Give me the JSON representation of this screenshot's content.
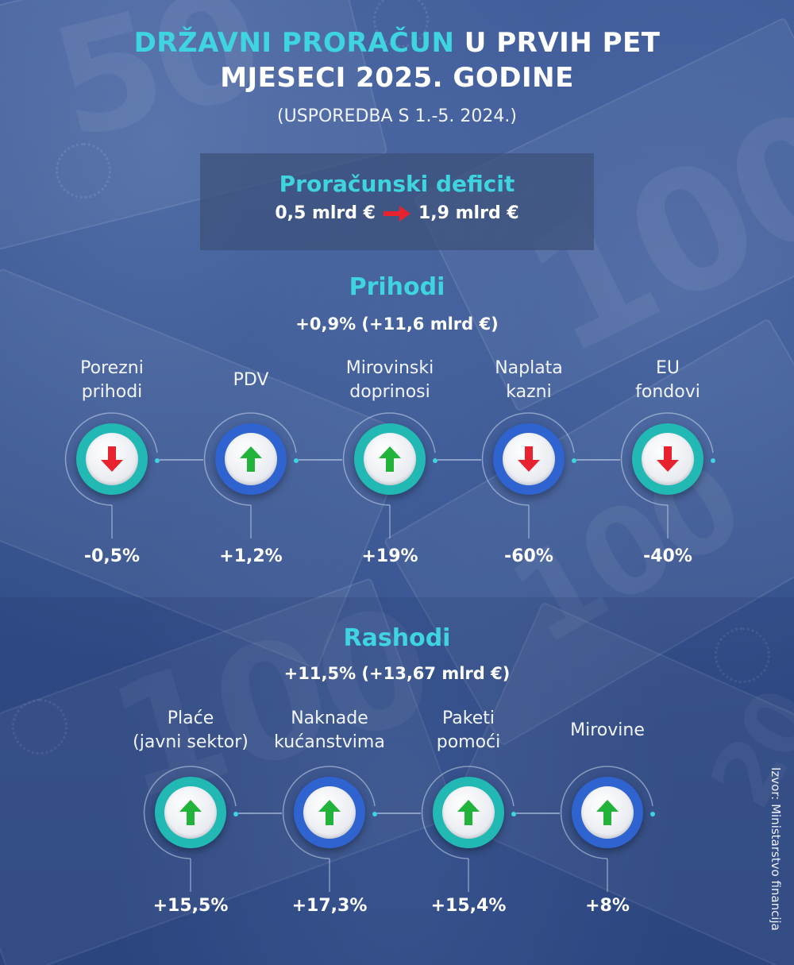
{
  "header": {
    "title_accent": "DRŽAVNI PRORAČUN",
    "title_rest_line1": "U PRVIH PET",
    "title_line2": "MJESECI 2025. GODINE",
    "subtitle": "(USPOREDBA S 1.-5. 2024.)"
  },
  "deficit": {
    "title": "Proračunski deficit",
    "from": "0,5 mlrd €",
    "to": "1,9 mlrd €",
    "arrow_color": "#e8222e"
  },
  "prihodi": {
    "title": "Prihodi",
    "summary": "+0,9% (+11,6 mlrd €)",
    "items": [
      {
        "label": "Porezni\nprihodi",
        "value": "-0,5%",
        "direction": "down",
        "circle": "teal"
      },
      {
        "label": "PDV",
        "value": "+1,2%",
        "direction": "up",
        "circle": "blue"
      },
      {
        "label": "Mirovinski\ndoprinosi",
        "value": "+19%",
        "direction": "up",
        "circle": "teal"
      },
      {
        "label": "Naplata\nkazni",
        "value": "-60%",
        "direction": "down",
        "circle": "blue"
      },
      {
        "label": "EU\nfondovi",
        "value": "-40%",
        "direction": "down",
        "circle": "teal"
      }
    ]
  },
  "rashodi": {
    "title": "Rashodi",
    "summary": "+11,5% (+13,67 mlrd €)",
    "items": [
      {
        "label": "Plaće\n(javni sektor)",
        "value": "+15,5%",
        "direction": "up",
        "circle": "teal"
      },
      {
        "label": "Naknade\nkućanstvima",
        "value": "+17,3%",
        "direction": "up",
        "circle": "blue"
      },
      {
        "label": "Paketi\npomoći",
        "value": "+15,4%",
        "direction": "up",
        "circle": "teal"
      },
      {
        "label": "Mirovine",
        "value": "+8%",
        "direction": "up",
        "circle": "blue"
      }
    ]
  },
  "colors": {
    "accent": "#3ed4e0",
    "teal": "#22b8b3",
    "blue": "#2f63cf",
    "up_arrow": "#22b43a",
    "down_arrow": "#e8222e"
  },
  "icons": {
    "up": "arrow-up-icon",
    "down": "arrow-down-icon"
  },
  "source": "Izvor: Ministarstvo financija"
}
